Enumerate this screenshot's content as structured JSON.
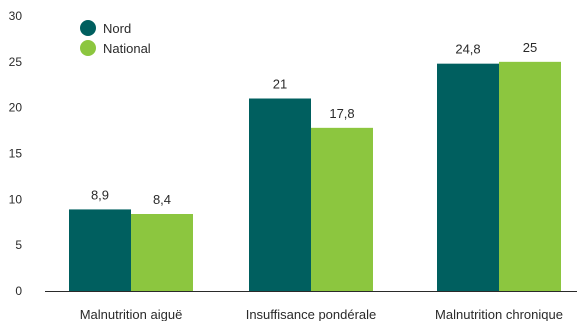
{
  "chart_data": {
    "type": "bar",
    "categories": [
      "Malnutrition aiguë",
      "Insuffisance pondérale",
      "Malnutrition chronique"
    ],
    "series": [
      {
        "name": "Nord",
        "values": [
          8.9,
          21,
          24.8
        ],
        "labels": [
          "8,9",
          "21",
          "24,8"
        ],
        "color": "#005f5f"
      },
      {
        "name": "National",
        "values": [
          8.4,
          17.8,
          25
        ],
        "labels": [
          "8,4",
          "17,8",
          "25"
        ],
        "color": "#8cc63f"
      }
    ],
    "yticks": [
      0,
      5,
      10,
      15,
      20,
      25,
      30
    ],
    "ylim": [
      0,
      30
    ],
    "title": "",
    "xlabel": "",
    "ylabel": "",
    "grid": false,
    "legend": "top-left"
  }
}
